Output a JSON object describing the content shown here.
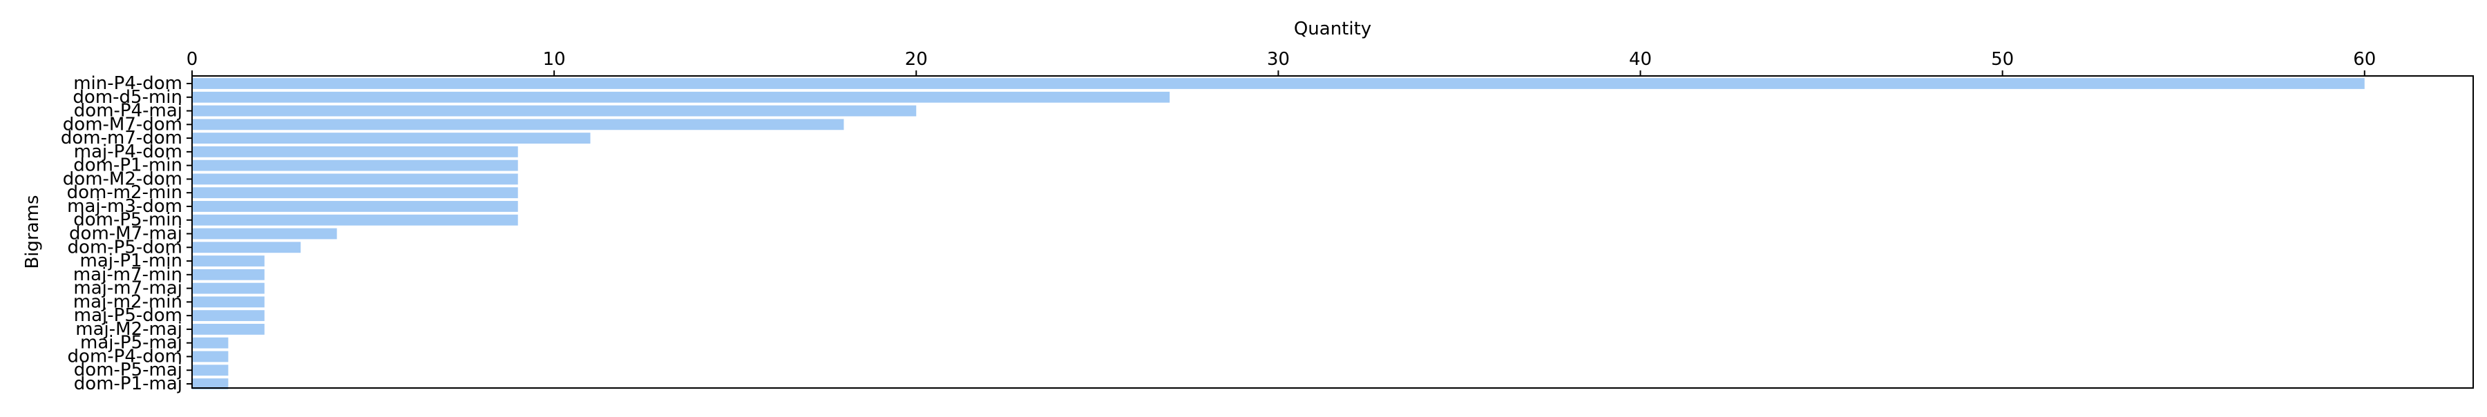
{
  "chart_data": {
    "type": "bar",
    "orientation": "horizontal",
    "title": "",
    "xlabel": "Quantity",
    "ylabel": "Bigrams",
    "xlim": [
      0,
      63
    ],
    "x_ticks": [
      0,
      10,
      20,
      30,
      40,
      50,
      60
    ],
    "x_axis_position": "top",
    "grid": false,
    "bar_color": "#a1c9f4",
    "categories": [
      "min-P4-dom",
      "dom-d5-min",
      "dom-P4-maj",
      "dom-M7-dom",
      "dom-m7-dom",
      "maj-P4-dom",
      "dom-P1-min",
      "dom-M2-dom",
      "dom-m2-min",
      "maj-m3-dom",
      "dom-P5-min",
      "dom-M7-maj",
      "dom-P5-dom",
      "maj-P1-min",
      "maj-m7-min",
      "maj-m7-maj",
      "maj-m2-min",
      "maj-P5-dom",
      "maj-M2-maj",
      "maj-P5-maj",
      "dom-P4-dom",
      "dom-P5-maj",
      "dom-P1-maj"
    ],
    "values": [
      60,
      27,
      20,
      18,
      11,
      9,
      9,
      9,
      9,
      9,
      9,
      4,
      3,
      2,
      2,
      2,
      2,
      2,
      2,
      1,
      1,
      1,
      1
    ]
  }
}
